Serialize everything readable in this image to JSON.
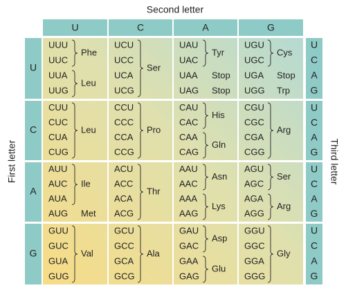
{
  "second_letter": "Second letter",
  "first_letter": "First letter",
  "third_letter": "Third letter",
  "columns": [
    "U",
    "C",
    "A",
    "G"
  ],
  "rows": [
    {
      "first": "U",
      "thirds": [
        "U",
        "C",
        "A",
        "G"
      ],
      "cells": [
        {
          "groups": [
            {
              "codons": [
                "UUU",
                "UUC"
              ],
              "amino": "Phe"
            },
            {
              "codons": [
                "UUA",
                "UUG"
              ],
              "amino": "Leu"
            }
          ]
        },
        {
          "groups": [
            {
              "codons": [
                "UCU",
                "UCC",
                "UCA",
                "UCG"
              ],
              "amino": "Ser"
            }
          ]
        },
        {
          "groups": [
            {
              "codons": [
                "UAU",
                "UAC"
              ],
              "amino": "Tyr"
            },
            {
              "codons": [
                "UAA"
              ],
              "amino": "Stop"
            },
            {
              "codons": [
                "UAG"
              ],
              "amino": "Stop"
            }
          ]
        },
        {
          "groups": [
            {
              "codons": [
                "UGU",
                "UGC"
              ],
              "amino": "Cys"
            },
            {
              "codons": [
                "UGA"
              ],
              "amino": "Stop"
            },
            {
              "codons": [
                "UGG"
              ],
              "amino": "Trp"
            }
          ]
        }
      ]
    },
    {
      "first": "C",
      "thirds": [
        "U",
        "C",
        "A",
        "G"
      ],
      "cells": [
        {
          "groups": [
            {
              "codons": [
                "CUU",
                "CUC",
                "CUA",
                "CUG"
              ],
              "amino": "Leu"
            }
          ]
        },
        {
          "groups": [
            {
              "codons": [
                "CCU",
                "CCC",
                "CCA",
                "CCG"
              ],
              "amino": "Pro"
            }
          ]
        },
        {
          "groups": [
            {
              "codons": [
                "CAU",
                "CAC"
              ],
              "amino": "His"
            },
            {
              "codons": [
                "CAA",
                "CAG"
              ],
              "amino": "Gln"
            }
          ]
        },
        {
          "groups": [
            {
              "codons": [
                "CGU",
                "CGC",
                "CGA",
                "CGG"
              ],
              "amino": "Arg"
            }
          ]
        }
      ]
    },
    {
      "first": "A",
      "thirds": [
        "U",
        "C",
        "A",
        "G"
      ],
      "cells": [
        {
          "groups": [
            {
              "codons": [
                "AUU",
                "AUC",
                "AUA"
              ],
              "amino": "Ile"
            },
            {
              "codons": [
                "AUG"
              ],
              "amino": "Met"
            }
          ]
        },
        {
          "groups": [
            {
              "codons": [
                "ACU",
                "ACC",
                "ACA",
                "ACG"
              ],
              "amino": "Thr"
            }
          ]
        },
        {
          "groups": [
            {
              "codons": [
                "AAU",
                "AAC"
              ],
              "amino": "Asn"
            },
            {
              "codons": [
                "AAA",
                "AAG"
              ],
              "amino": "Lys"
            }
          ]
        },
        {
          "groups": [
            {
              "codons": [
                "AGU",
                "AGC"
              ],
              "amino": "Ser"
            },
            {
              "codons": [
                "AGA",
                "AGG"
              ],
              "amino": "Arg"
            }
          ]
        }
      ]
    },
    {
      "first": "G",
      "thirds": [
        "U",
        "C",
        "A",
        "G"
      ],
      "cells": [
        {
          "groups": [
            {
              "codons": [
                "GUU",
                "GUC",
                "GUA",
                "GUG"
              ],
              "amino": "Val"
            }
          ]
        },
        {
          "groups": [
            {
              "codons": [
                "GCU",
                "GCC",
                "GCA",
                "GCG"
              ],
              "amino": "Ala"
            }
          ]
        },
        {
          "groups": [
            {
              "codons": [
                "GAU",
                "GAC"
              ],
              "amino": "Asp"
            },
            {
              "codons": [
                "GAA",
                "GAG"
              ],
              "amino": "Glu"
            }
          ]
        },
        {
          "groups": [
            {
              "codons": [
                "GGU",
                "GGC",
                "GGA",
                "GGG"
              ],
              "amino": "Gly"
            }
          ]
        }
      ]
    }
  ]
}
